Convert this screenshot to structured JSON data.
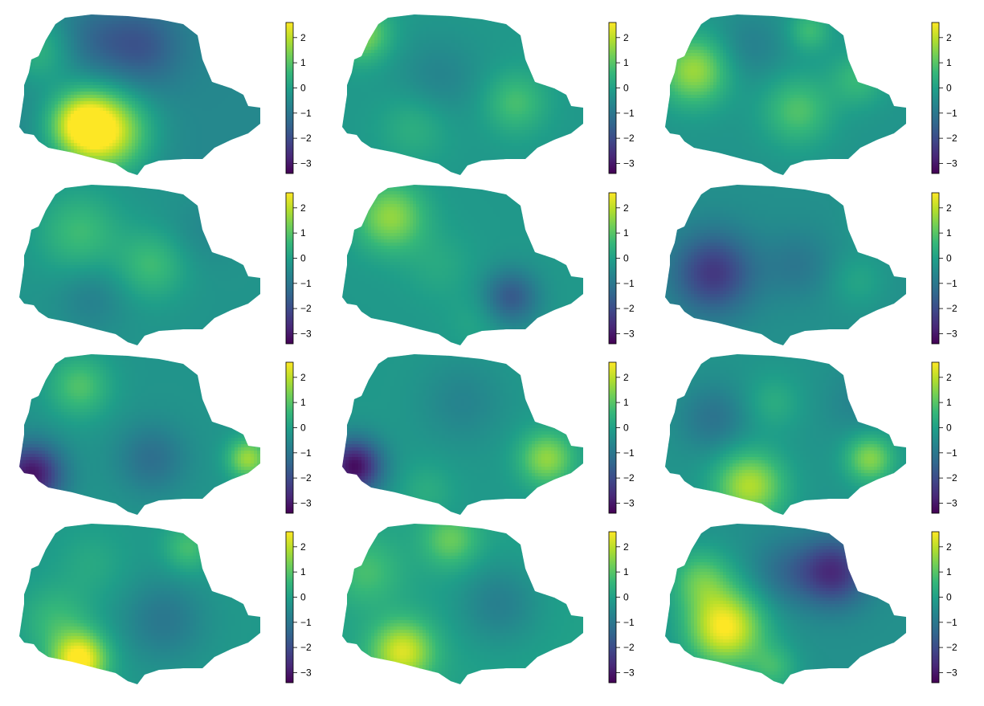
{
  "chart_data": {
    "type": "heatmap",
    "layout": {
      "rows": 4,
      "cols": 3
    },
    "colormap": [
      "#440154",
      "#482878",
      "#3e4989",
      "#31688e",
      "#26828e",
      "#1f9e89",
      "#35b779",
      "#6ece58",
      "#b5de2b",
      "#fde725"
    ],
    "value_range": [
      -3.4,
      2.6
    ],
    "colorbar_ticks": [
      2,
      1,
      0,
      -1,
      -2,
      -3
    ],
    "colorbar_tick_labels": [
      "2",
      "1",
      "0",
      "−1",
      "−2",
      "−3"
    ],
    "panels": [
      {
        "base": -0.6,
        "blobs": [
          [
            0.36,
            0.73,
            2.9,
            0.12
          ],
          [
            0.25,
            0.68,
            2.2,
            0.09
          ],
          [
            0.08,
            0.22,
            1.0,
            0.1
          ],
          [
            0.5,
            0.2,
            -1.2,
            0.12
          ],
          [
            0.3,
            0.15,
            -0.6,
            0.1
          ]
        ]
      },
      {
        "base": -0.2,
        "blobs": [
          [
            0.08,
            0.12,
            1.7,
            0.08
          ],
          [
            0.72,
            0.55,
            1.0,
            0.09
          ],
          [
            0.4,
            0.4,
            -0.5,
            0.12
          ],
          [
            0.3,
            0.7,
            0.6,
            0.1
          ],
          [
            0.95,
            0.2,
            1.0,
            0.07
          ]
        ]
      },
      {
        "base": -0.3,
        "blobs": [
          [
            0.12,
            0.35,
            2.0,
            0.1
          ],
          [
            0.55,
            0.6,
            1.2,
            0.1
          ],
          [
            0.8,
            0.4,
            0.9,
            0.08
          ],
          [
            0.35,
            0.2,
            -0.5,
            0.1
          ],
          [
            0.6,
            0.1,
            1.0,
            0.06
          ]
        ]
      },
      {
        "base": -0.3,
        "blobs": [
          [
            0.25,
            0.3,
            1.0,
            0.12
          ],
          [
            0.55,
            0.5,
            1.0,
            0.1
          ],
          [
            0.3,
            0.7,
            -0.5,
            0.1
          ],
          [
            0.75,
            0.3,
            -0.3,
            0.1
          ]
        ]
      },
      {
        "base": -0.2,
        "blobs": [
          [
            0.2,
            0.2,
            1.8,
            0.1
          ],
          [
            0.7,
            0.7,
            -1.5,
            0.08
          ],
          [
            0.4,
            0.5,
            0.4,
            0.1
          ],
          [
            0.55,
            0.85,
            0.3,
            0.08
          ]
        ]
      },
      {
        "base": -0.4,
        "blobs": [
          [
            0.2,
            0.55,
            -2.0,
            0.12
          ],
          [
            0.55,
            0.5,
            -0.6,
            0.1
          ],
          [
            0.8,
            0.6,
            0.5,
            0.08
          ],
          [
            0.9,
            0.2,
            0.6,
            0.08
          ]
        ]
      },
      {
        "base": -0.3,
        "blobs": [
          [
            0.05,
            0.75,
            -2.8,
            0.09
          ],
          [
            0.25,
            0.2,
            1.2,
            0.09
          ],
          [
            0.55,
            0.65,
            -0.9,
            0.1
          ],
          [
            0.95,
            0.65,
            2.0,
            0.06
          ]
        ]
      },
      {
        "base": -0.2,
        "blobs": [
          [
            0.05,
            0.7,
            -3.0,
            0.08
          ],
          [
            0.85,
            0.65,
            1.8,
            0.08
          ],
          [
            0.5,
            0.3,
            -0.5,
            0.12
          ],
          [
            0.35,
            0.85,
            0.5,
            0.08
          ]
        ]
      },
      {
        "base": -0.3,
        "blobs": [
          [
            0.35,
            0.82,
            2.2,
            0.1
          ],
          [
            0.85,
            0.65,
            1.8,
            0.07
          ],
          [
            0.2,
            0.4,
            -0.8,
            0.1
          ],
          [
            0.45,
            0.3,
            0.6,
            0.08
          ],
          [
            0.8,
            0.3,
            -0.4,
            0.1
          ]
        ]
      },
      {
        "base": -0.2,
        "blobs": [
          [
            0.25,
            0.85,
            3.0,
            0.08
          ],
          [
            0.15,
            0.6,
            0.8,
            0.1
          ],
          [
            0.6,
            0.6,
            -0.8,
            0.12
          ],
          [
            0.7,
            0.15,
            1.0,
            0.07
          ],
          [
            0.3,
            0.25,
            0.4,
            0.1
          ]
        ]
      },
      {
        "base": 0.0,
        "blobs": [
          [
            0.25,
            0.8,
            2.3,
            0.09
          ],
          [
            0.45,
            0.1,
            1.2,
            0.08
          ],
          [
            0.65,
            0.5,
            -0.8,
            0.12
          ],
          [
            0.1,
            0.3,
            0.8,
            0.1
          ]
        ]
      },
      {
        "base": -0.4,
        "blobs": [
          [
            0.25,
            0.65,
            3.0,
            0.11
          ],
          [
            0.7,
            0.3,
            -2.2,
            0.1
          ],
          [
            0.15,
            0.35,
            1.4,
            0.09
          ],
          [
            0.5,
            0.3,
            -0.8,
            0.1
          ],
          [
            0.45,
            0.9,
            1.0,
            0.07
          ]
        ]
      }
    ]
  }
}
